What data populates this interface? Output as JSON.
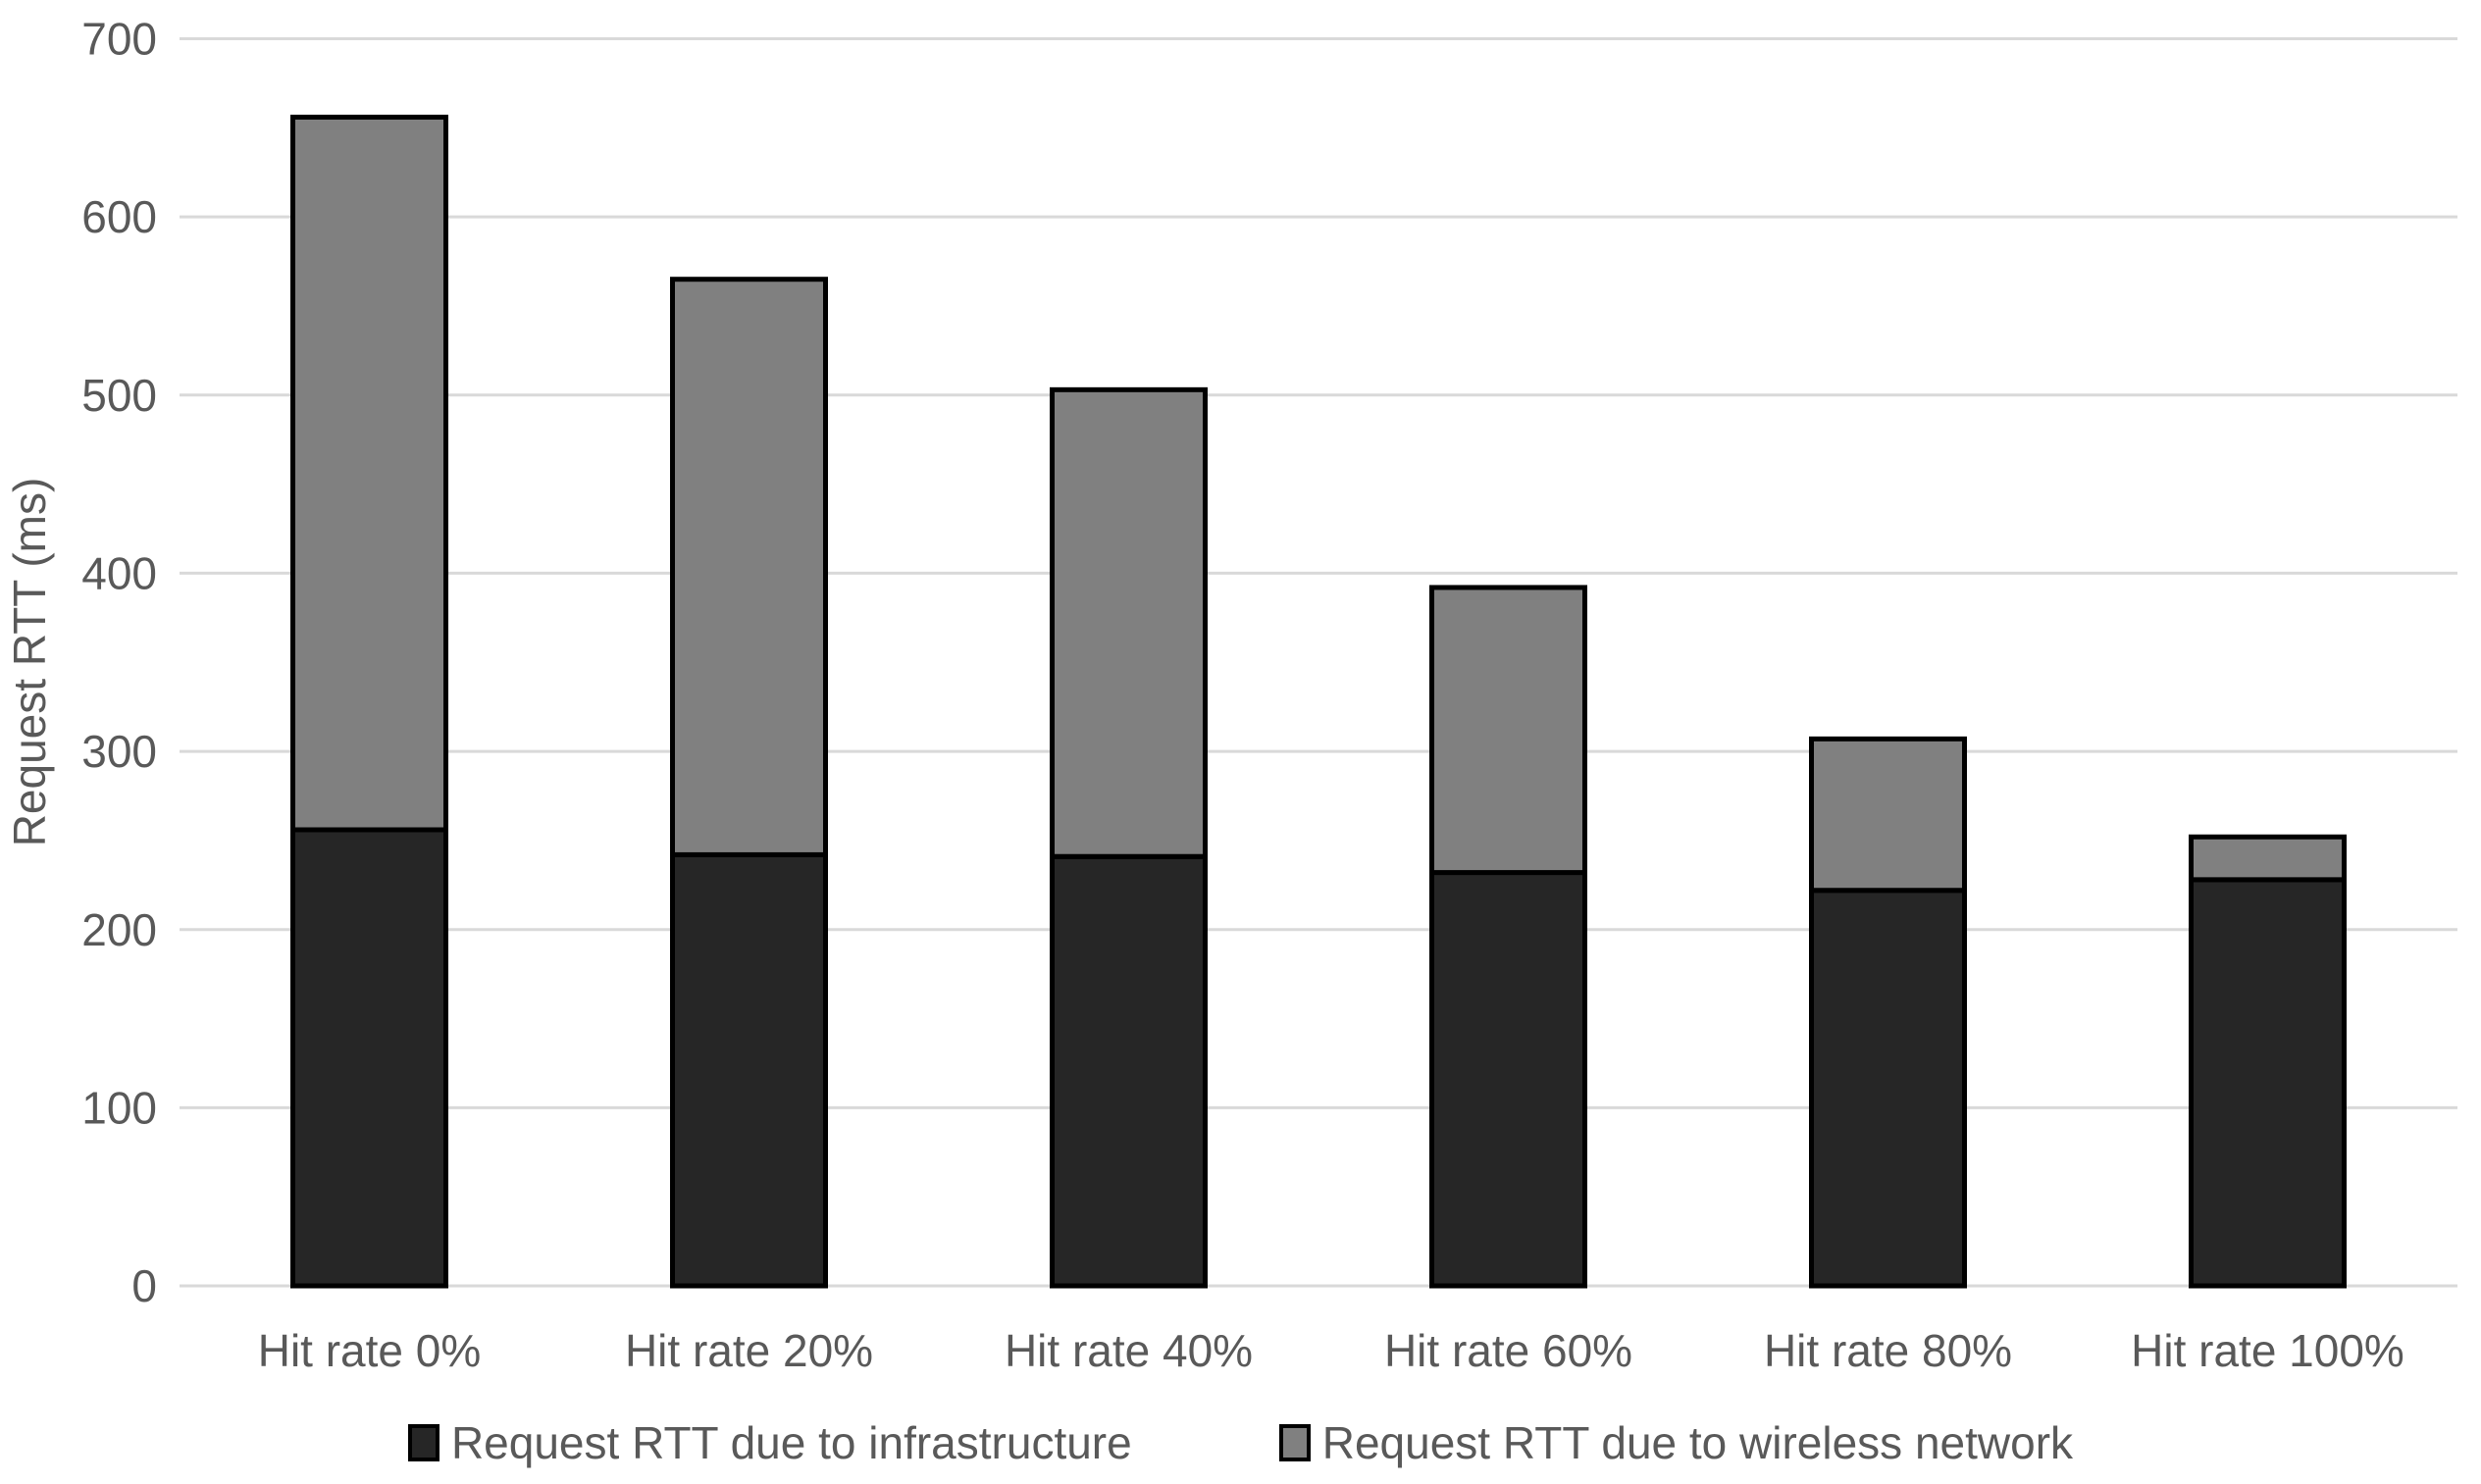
{
  "chart_data": {
    "type": "bar",
    "stacked": true,
    "title": "",
    "xlabel": "",
    "ylabel": "Request RTT (ms)",
    "categories": [
      "Hit rate 0%",
      "Hit rate 20%",
      "Hit rate 40%",
      "Hit rate 60%",
      "Hit rate 80%",
      "Hit rate 100%"
    ],
    "series": [
      {
        "name": "Request RTT due to infrastructure",
        "color": "#262626",
        "values": [
          256,
          242,
          241,
          232,
          222,
          228
        ]
      },
      {
        "name": "Request RTT due to wireless network",
        "color": "#808080",
        "values": [
          400,
          323,
          262,
          160,
          85,
          24
        ]
      }
    ],
    "totals": [
      656,
      565,
      503,
      392,
      307,
      252
    ],
    "ylim": [
      0,
      700
    ],
    "yticks": [
      0,
      100,
      200,
      300,
      400,
      500,
      600,
      700
    ],
    "grid": true,
    "legend_position": "bottom",
    "colors": {
      "gridline": "#d9d9d9",
      "text": "#595959",
      "bar_border": "#000000",
      "background": "#ffffff"
    }
  }
}
